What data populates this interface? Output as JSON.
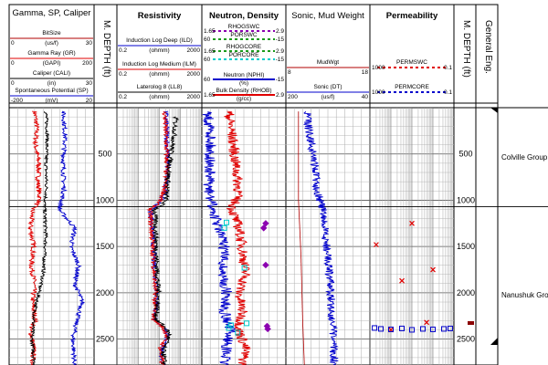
{
  "tracks": [
    {
      "title": "Gamma, SP, Caliper",
      "curves": [
        {
          "name": "BitSize",
          "unit": "(us/f)",
          "min": "0",
          "max": "30",
          "color": "#b00000"
        },
        {
          "name": "Gamma Ray (GR)",
          "unit": "(GAPI)",
          "min": "0",
          "max": "200",
          "color": "#e00000"
        },
        {
          "name": "Caliper (CALI)",
          "unit": "(in)",
          "min": "0",
          "max": "30",
          "color": "#000000"
        },
        {
          "name": "Spontaneous Potential (SP)",
          "unit": "(mV)",
          "min": "-200",
          "max": "20",
          "color": "#0000cc"
        }
      ]
    },
    {
      "title": "M. DEPTH (ft)"
    },
    {
      "title": "Resistivity",
      "curves": [
        {
          "name": "Induction Log Deep (ILD)",
          "unit": "(ohmm)",
          "min": "0.2",
          "max": "2000",
          "color": "#0000cc"
        },
        {
          "name": "Induction Log Medium (ILM)",
          "unit": "(ohmm)",
          "min": "0.2",
          "max": "2000",
          "color": "#e00000"
        },
        {
          "name": "Laterolog 8 (LL8)",
          "unit": "(ohmm)",
          "min": "0.2",
          "max": "2000",
          "color": "#000000"
        }
      ]
    },
    {
      "title": "Neutron, Density",
      "curves": [
        {
          "name": "RHOGSWC",
          "unit": "",
          "min": "1.65",
          "max": "2.9",
          "color": "#8b00b0"
        },
        {
          "name": "PORSWC",
          "unit": "",
          "min": "60",
          "max": "-15",
          "color": "#1a9a1a"
        },
        {
          "name": "RHOGCORE",
          "unit": "",
          "min": "1.65",
          "max": "2.9",
          "color": "#1a9a1a"
        },
        {
          "name": "PORCORE",
          "unit": "",
          "min": "60",
          "max": "-15",
          "color": "#00cccc"
        },
        {
          "name": "Neutron (NPHI)",
          "unit": "(%)",
          "min": "60",
          "max": "-15",
          "color": "#0000cc"
        },
        {
          "name": "Bulk Density (RHOB)",
          "unit": "(g/cc)",
          "min": "1.65",
          "max": "2.9",
          "color": "#e00000"
        }
      ]
    },
    {
      "title": "Sonic, Mud Weight",
      "curves": [
        {
          "name": "MudWgt",
          "unit": "",
          "min": "8",
          "max": "18",
          "color": "#b00000"
        },
        {
          "name": "Sonic (DT)",
          "unit": "(us/f)",
          "min": "200",
          "max": "40",
          "color": "#0000cc"
        }
      ]
    },
    {
      "title": "Permeability",
      "curves": [
        {
          "name": "PERMSWC",
          "unit": "",
          "min": "1000",
          "max": "0.1",
          "color": "#e00000"
        },
        {
          "name": "PERMCORE",
          "unit": "",
          "min": "1000",
          "max": "0.1",
          "color": "#0000cc"
        }
      ]
    },
    {
      "title": "M. DEPTH (ft)"
    },
    {
      "title": "General Eng."
    }
  ],
  "depth_ticks": [
    "500",
    "1000",
    "1500",
    "2000",
    "2500"
  ],
  "formations": [
    {
      "name": "Colville Group",
      "top_ft": 0,
      "label_depth_ft": 560
    },
    {
      "name": "Nanushuk Group",
      "top_ft": 1070,
      "label_depth_ft": 2050
    }
  ],
  "chart_data": {
    "type": "line",
    "title": "",
    "ylabel": "M. DEPTH (ft)",
    "ylim": [
      0,
      2780
    ],
    "y_direction": "depth increasing downward",
    "series": [
      {
        "name": "Gamma Ray (GR)",
        "unit": "GAPI",
        "x_range": [
          0,
          200
        ],
        "points": [
          [
            60,
            40
          ],
          [
            65,
            200
          ],
          [
            62,
            400
          ],
          [
            70,
            600
          ],
          [
            68,
            800
          ],
          [
            72,
            1000
          ],
          [
            55,
            1100
          ],
          [
            50,
            1300
          ],
          [
            58,
            1500
          ],
          [
            52,
            1700
          ],
          [
            60,
            1900
          ],
          [
            55,
            2100
          ],
          [
            62,
            2300
          ],
          [
            50,
            2400
          ],
          [
            58,
            2600
          ],
          [
            55,
            2780
          ]
        ]
      },
      {
        "name": "Caliper (CALI)",
        "unit": "in",
        "x_range": [
          0,
          30
        ],
        "points": [
          [
            13,
            40
          ],
          [
            13.5,
            300
          ],
          [
            13,
            600
          ],
          [
            13.2,
            900
          ],
          [
            12.5,
            1050
          ],
          [
            13,
            1400
          ],
          [
            12,
            1800
          ],
          [
            9,
            2200
          ],
          [
            8,
            2500
          ],
          [
            9,
            2780
          ]
        ]
      },
      {
        "name": "Spontaneous Potential (SP)",
        "unit": "mV",
        "x_range": [
          -200,
          20
        ],
        "points": [
          [
            -60,
            40
          ],
          [
            -55,
            300
          ],
          [
            -60,
            600
          ],
          [
            -58,
            900
          ],
          [
            -70,
            1100
          ],
          [
            -30,
            1300
          ],
          [
            -40,
            1500
          ],
          [
            -20,
            1700
          ],
          [
            -30,
            1900
          ],
          [
            -10,
            2100
          ],
          [
            -25,
            2300
          ],
          [
            -35,
            2500
          ],
          [
            -30,
            2780
          ]
        ]
      },
      {
        "name": "Induction Log Deep (ILD)",
        "unit": "ohmm",
        "x_range": [
          0.2,
          2000
        ],
        "scale": "log",
        "points": [
          [
            40,
            40
          ],
          [
            45,
            300
          ],
          [
            50,
            600
          ],
          [
            40,
            900
          ],
          [
            8,
            1100
          ],
          [
            10,
            1400
          ],
          [
            12,
            1700
          ],
          [
            15,
            2000
          ],
          [
            12,
            2300
          ],
          [
            50,
            2450
          ],
          [
            25,
            2600
          ],
          [
            30,
            2780
          ]
        ]
      },
      {
        "name": "Induction Log Medium (ILM)",
        "unit": "ohmm",
        "x_range": [
          0.2,
          2000
        ],
        "scale": "log",
        "points": [
          [
            35,
            40
          ],
          [
            40,
            300
          ],
          [
            45,
            600
          ],
          [
            35,
            900
          ],
          [
            7,
            1100
          ],
          [
            9,
            1400
          ],
          [
            11,
            1700
          ],
          [
            13,
            2000
          ],
          [
            11,
            2300
          ],
          [
            45,
            2450
          ],
          [
            22,
            2600
          ],
          [
            27,
            2780
          ]
        ]
      },
      {
        "name": "Laterolog 8 (LL8)",
        "unit": "ohmm",
        "x_range": [
          0.2,
          2000
        ],
        "scale": "log",
        "points": [
          [
            120,
            100
          ],
          [
            100,
            300
          ],
          [
            70,
            500
          ],
          [
            55,
            700
          ],
          [
            40,
            1000
          ],
          [
            12,
            1100
          ],
          [
            14,
            1400
          ],
          [
            15,
            1700
          ],
          [
            18,
            2000
          ],
          [
            14,
            2300
          ],
          [
            60,
            2450
          ],
          [
            30,
            2600
          ],
          [
            35,
            2780
          ]
        ]
      },
      {
        "name": "Neutron (NPHI)",
        "unit": "%",
        "x_range": [
          60,
          -15
        ],
        "points": [
          [
            55,
            40
          ],
          [
            52,
            300
          ],
          [
            53,
            600
          ],
          [
            54,
            900
          ],
          [
            50,
            1100
          ],
          [
            45,
            1300
          ],
          [
            40,
            1500
          ],
          [
            42,
            1800
          ],
          [
            38,
            2000
          ],
          [
            40,
            2200
          ],
          [
            35,
            2400
          ],
          [
            38,
            2600
          ],
          [
            40,
            2780
          ]
        ]
      },
      {
        "name": "Bulk Density (RHOB)",
        "unit": "g/cc",
        "x_range": [
          1.65,
          2.9
        ],
        "points": [
          [
            2.05,
            40
          ],
          [
            2.1,
            300
          ],
          [
            2.15,
            600
          ],
          [
            2.2,
            900
          ],
          [
            2.1,
            1100
          ],
          [
            2.2,
            1300
          ],
          [
            2.25,
            1500
          ],
          [
            2.3,
            1800
          ],
          [
            2.2,
            2000
          ],
          [
            2.25,
            2200
          ],
          [
            2.2,
            2400
          ],
          [
            2.3,
            2600
          ],
          [
            2.25,
            2780
          ]
        ]
      },
      {
        "name": "MudWgt",
        "unit": "",
        "x_range": [
          8,
          18
        ],
        "points": [
          [
            9.5,
            40
          ],
          [
            9.5,
            1000
          ],
          [
            9.8,
            1600
          ],
          [
            10,
            2300
          ],
          [
            10.2,
            2780
          ]
        ]
      },
      {
        "name": "Sonic (DT)",
        "unit": "us/f",
        "x_range": [
          200,
          40
        ],
        "points": [
          [
            160,
            40
          ],
          [
            155,
            300
          ],
          [
            145,
            600
          ],
          [
            140,
            900
          ],
          [
            130,
            1100
          ],
          [
            125,
            1400
          ],
          [
            118,
            1700
          ],
          [
            115,
            2000
          ],
          [
            112,
            2300
          ],
          [
            110,
            2500
          ],
          [
            108,
            2780
          ]
        ]
      },
      {
        "name": "PORCORE",
        "unit": "",
        "x_range": [
          60,
          -15
        ],
        "marker": "square",
        "points": [
          [
            38,
            1240
          ],
          [
            40,
            1300
          ],
          [
            22,
            1730
          ],
          [
            20,
            2330
          ],
          [
            34,
            2350
          ],
          [
            36,
            2380
          ],
          [
            28,
            2430
          ]
        ]
      },
      {
        "name": "RHOGSWC",
        "unit": "",
        "x_range": [
          1.65,
          2.9
        ],
        "marker": "diamond",
        "points": [
          [
            2.6,
            1250
          ],
          [
            2.57,
            1300
          ],
          [
            2.6,
            1700
          ],
          [
            2.62,
            2360
          ],
          [
            2.63,
            2390
          ]
        ]
      },
      {
        "name": "PERMSWC",
        "unit": "",
        "x_range": [
          1000,
          0.1
        ],
        "scale": "log",
        "marker": "x",
        "points": [
          [
            10,
            1250
          ],
          [
            500,
            1480
          ],
          [
            1,
            1750
          ],
          [
            30,
            1870
          ],
          [
            2,
            2320
          ],
          [
            100,
            2400
          ]
        ]
      },
      {
        "name": "PERMCORE",
        "unit": "",
        "x_range": [
          1000,
          0.1
        ],
        "scale": "log",
        "marker": "square",
        "points": [
          [
            600,
            2380
          ],
          [
            300,
            2390
          ],
          [
            100,
            2395
          ],
          [
            30,
            2385
          ],
          [
            10,
            2400
          ],
          [
            3,
            2390
          ],
          [
            1,
            2395
          ],
          [
            0.3,
            2390
          ],
          [
            0.15,
            2385
          ]
        ]
      }
    ]
  }
}
